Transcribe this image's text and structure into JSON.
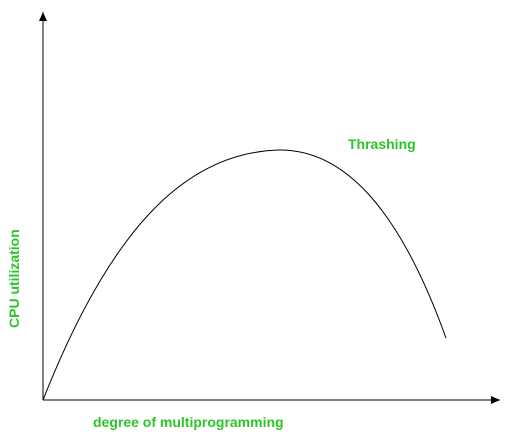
{
  "diagram": {
    "label_color": "#2bc42b",
    "line_color": "#000000",
    "x_axis_label": "degree of multiprogramming",
    "y_axis_label": "CPU utilization",
    "curve_label": "Thrashing"
  }
}
